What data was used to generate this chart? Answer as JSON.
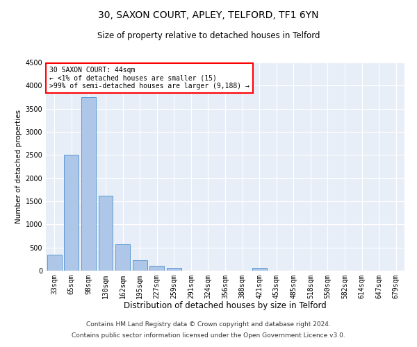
{
  "title1": "30, SAXON COURT, APLEY, TELFORD, TF1 6YN",
  "title2": "Size of property relative to detached houses in Telford",
  "xlabel": "Distribution of detached houses by size in Telford",
  "ylabel": "Number of detached properties",
  "categories": [
    "33sqm",
    "65sqm",
    "98sqm",
    "130sqm",
    "162sqm",
    "195sqm",
    "227sqm",
    "259sqm",
    "291sqm",
    "324sqm",
    "356sqm",
    "388sqm",
    "421sqm",
    "453sqm",
    "485sqm",
    "518sqm",
    "550sqm",
    "582sqm",
    "614sqm",
    "647sqm",
    "679sqm"
  ],
  "values": [
    350,
    2500,
    3750,
    1625,
    575,
    225,
    100,
    55,
    0,
    0,
    0,
    0,
    55,
    0,
    0,
    0,
    0,
    0,
    0,
    0,
    0
  ],
  "bar_color": "#aec6e8",
  "bar_edge_color": "#5b9bd5",
  "annotation_box_text": "30 SAXON COURT: 44sqm\n← <1% of detached houses are smaller (15)\n>99% of semi-detached houses are larger (9,188) →",
  "footer1": "Contains HM Land Registry data © Crown copyright and database right 2024.",
  "footer2": "Contains public sector information licensed under the Open Government Licence v3.0.",
  "ylim": [
    0,
    4500
  ],
  "yticks": [
    0,
    500,
    1000,
    1500,
    2000,
    2500,
    3000,
    3500,
    4000,
    4500
  ],
  "bg_color": "#e8eef8",
  "grid_color": "white",
  "title1_fontsize": 10,
  "title2_fontsize": 8.5,
  "xlabel_fontsize": 8.5,
  "ylabel_fontsize": 7.5,
  "tick_fontsize": 7,
  "annotation_fontsize": 7,
  "footer_fontsize": 6.5
}
